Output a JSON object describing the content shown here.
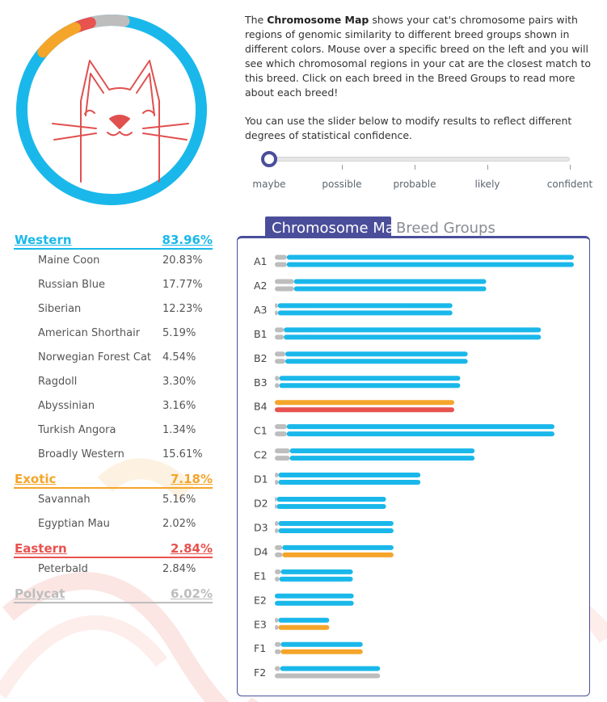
{
  "description": {
    "p1_before": "The ",
    "p1_bold": "Chromosome Map",
    "p1_after": " shows your cat's chromosome pairs with regions of genomic similarity to different breed groups shown in different colors. Mouse over a specific breed on the left and you will see which chromosomal regions in your cat are the closest match to this breed. Click on each breed in the Breed Groups to read more about each breed!",
    "p2": "You can use the slider below to modify results to reflect different degrees of statistical confidence."
  },
  "slider": {
    "labels": [
      "maybe",
      "possible",
      "probable",
      "likely",
      "confident"
    ],
    "selected": "maybe"
  },
  "colors": {
    "western": "#1ab8ea",
    "exotic": "#f4a52a",
    "eastern": "#e8524f",
    "polycat": "#bdbdbd",
    "accent": "#4a4e9a",
    "cat_line": "#e0504f"
  },
  "donut": {
    "segments": [
      {
        "group": "western",
        "fraction": 0.8396
      },
      {
        "group": "exotic",
        "fraction": 0.0718
      },
      {
        "group": "eastern",
        "fraction": 0.0284
      },
      {
        "group": "polycat",
        "fraction": 0.0602
      }
    ]
  },
  "groups": [
    {
      "key": "western",
      "name": "Western",
      "pct": "83.96%",
      "breeds": [
        {
          "name": "Maine Coon",
          "pct": "20.83%"
        },
        {
          "name": "Russian Blue",
          "pct": "17.77%"
        },
        {
          "name": "Siberian",
          "pct": "12.23%"
        },
        {
          "name": "American Shorthair",
          "pct": "5.19%"
        },
        {
          "name": "Norwegian Forest Cat",
          "pct": "4.54%"
        },
        {
          "name": "Ragdoll",
          "pct": "3.30%"
        },
        {
          "name": "Abyssinian",
          "pct": "3.16%"
        },
        {
          "name": "Turkish Angora",
          "pct": "1.34%"
        },
        {
          "name": "Broadly Western",
          "pct": "15.61%"
        }
      ]
    },
    {
      "key": "exotic",
      "name": "Exotic",
      "pct": "7.18%",
      "breeds": [
        {
          "name": "Savannah",
          "pct": "5.16%"
        },
        {
          "name": "Egyptian Mau",
          "pct": "2.02%"
        }
      ]
    },
    {
      "key": "eastern",
      "name": "Eastern",
      "pct": "2.84%",
      "breeds": [
        {
          "name": "Peterbald",
          "pct": "2.84%"
        }
      ]
    },
    {
      "key": "polycat",
      "name": "Polycat",
      "pct": "6.02%",
      "breeds": []
    }
  ],
  "tabs": {
    "active": "Chromosome Map",
    "inactive": "Breed Groups"
  },
  "chromosomes": [
    {
      "name": "A1",
      "strands": [
        [
          {
            "g": "polycat",
            "len": 0.04
          },
          {
            "g": "western",
            "len": 0.96
          }
        ],
        [
          {
            "g": "polycat",
            "len": 0.04
          },
          {
            "g": "western",
            "len": 0.96
          }
        ]
      ]
    },
    {
      "name": "A2",
      "strands": [
        [
          {
            "g": "polycat",
            "len": 0.064
          },
          {
            "g": "western",
            "len": 0.643
          }
        ],
        [
          {
            "g": "polycat",
            "len": 0.064
          },
          {
            "g": "western",
            "len": 0.643
          }
        ]
      ]
    },
    {
      "name": "A3",
      "strands": [
        [
          {
            "g": "polycat",
            "len": 0.01
          },
          {
            "g": "western",
            "len": 0.584
          }
        ],
        [
          {
            "g": "polycat",
            "len": 0.01
          },
          {
            "g": "western",
            "len": 0.584
          }
        ]
      ]
    },
    {
      "name": "B1",
      "strands": [
        [
          {
            "g": "polycat",
            "len": 0.03
          },
          {
            "g": "western",
            "len": 0.86
          }
        ],
        [
          {
            "g": "polycat",
            "len": 0.03
          },
          {
            "g": "western",
            "len": 0.86
          }
        ]
      ]
    },
    {
      "name": "B2",
      "strands": [
        [
          {
            "g": "polycat",
            "len": 0.035
          },
          {
            "g": "western",
            "len": 0.61
          }
        ],
        [
          {
            "g": "polycat",
            "len": 0.035
          },
          {
            "g": "western",
            "len": 0.61
          }
        ]
      ]
    },
    {
      "name": "B3",
      "strands": [
        [
          {
            "g": "polycat",
            "len": 0.015
          },
          {
            "g": "western",
            "len": 0.605
          }
        ],
        [
          {
            "g": "polycat",
            "len": 0.015
          },
          {
            "g": "western",
            "len": 0.605
          }
        ]
      ]
    },
    {
      "name": "B4",
      "strands": [
        [
          {
            "g": "exotic",
            "len": 0.6
          }
        ],
        [
          {
            "g": "eastern",
            "len": 0.6
          }
        ]
      ]
    },
    {
      "name": "C1",
      "strands": [
        [
          {
            "g": "polycat",
            "len": 0.04
          },
          {
            "g": "western",
            "len": 0.895
          }
        ],
        [
          {
            "g": "polycat",
            "len": 0.04
          },
          {
            "g": "western",
            "len": 0.895
          }
        ]
      ]
    },
    {
      "name": "C2",
      "strands": [
        [
          {
            "g": "polycat",
            "len": 0.05
          },
          {
            "g": "western",
            "len": 0.618
          }
        ],
        [
          {
            "g": "polycat",
            "len": 0.05
          },
          {
            "g": "western",
            "len": 0.618
          }
        ]
      ]
    },
    {
      "name": "D1",
      "strands": [
        [
          {
            "g": "polycat",
            "len": 0.012
          },
          {
            "g": "western",
            "len": 0.475
          }
        ],
        [
          {
            "g": "polycat",
            "len": 0.012
          },
          {
            "g": "western",
            "len": 0.475
          }
        ]
      ]
    },
    {
      "name": "D2",
      "strands": [
        [
          {
            "g": "polycat",
            "len": 0.006
          },
          {
            "g": "western",
            "len": 0.366
          }
        ],
        [
          {
            "g": "polycat",
            "len": 0.006
          },
          {
            "g": "western",
            "len": 0.366
          }
        ]
      ]
    },
    {
      "name": "D3",
      "strands": [
        [
          {
            "g": "polycat",
            "len": 0.012
          },
          {
            "g": "western",
            "len": 0.385
          }
        ],
        [
          {
            "g": "polycat",
            "len": 0.012
          },
          {
            "g": "western",
            "len": 0.385
          }
        ]
      ]
    },
    {
      "name": "D4",
      "strands": [
        [
          {
            "g": "polycat",
            "len": 0.025
          },
          {
            "g": "western",
            "len": 0.372
          }
        ],
        [
          {
            "g": "polycat",
            "len": 0.025
          },
          {
            "g": "exotic",
            "len": 0.372
          }
        ]
      ]
    },
    {
      "name": "E1",
      "strands": [
        [
          {
            "g": "polycat",
            "len": 0.02
          },
          {
            "g": "western",
            "len": 0.241
          }
        ],
        [
          {
            "g": "polycat",
            "len": 0.015
          },
          {
            "g": "western",
            "len": 0.246
          }
        ]
      ]
    },
    {
      "name": "E2",
      "strands": [
        [
          {
            "g": "western",
            "len": 0.264
          }
        ],
        [
          {
            "g": "western",
            "len": 0.264
          }
        ]
      ]
    },
    {
      "name": "E3",
      "strands": [
        [
          {
            "g": "polycat",
            "len": 0.012
          },
          {
            "g": "western",
            "len": 0.17
          }
        ],
        [
          {
            "g": "polycat",
            "len": 0.012
          },
          {
            "g": "exotic",
            "len": 0.17
          }
        ]
      ]
    },
    {
      "name": "F1",
      "strands": [
        [
          {
            "g": "polycat",
            "len": 0.02
          },
          {
            "g": "western",
            "len": 0.274
          }
        ],
        [
          {
            "g": "polycat",
            "len": 0.02
          },
          {
            "g": "exotic",
            "len": 0.274
          }
        ]
      ]
    },
    {
      "name": "F2",
      "strands": [
        [
          {
            "g": "polycat",
            "len": 0.018
          },
          {
            "g": "western",
            "len": 0.334
          }
        ],
        [
          {
            "g": "polycat",
            "len": 0.352
          }
        ]
      ]
    }
  ]
}
